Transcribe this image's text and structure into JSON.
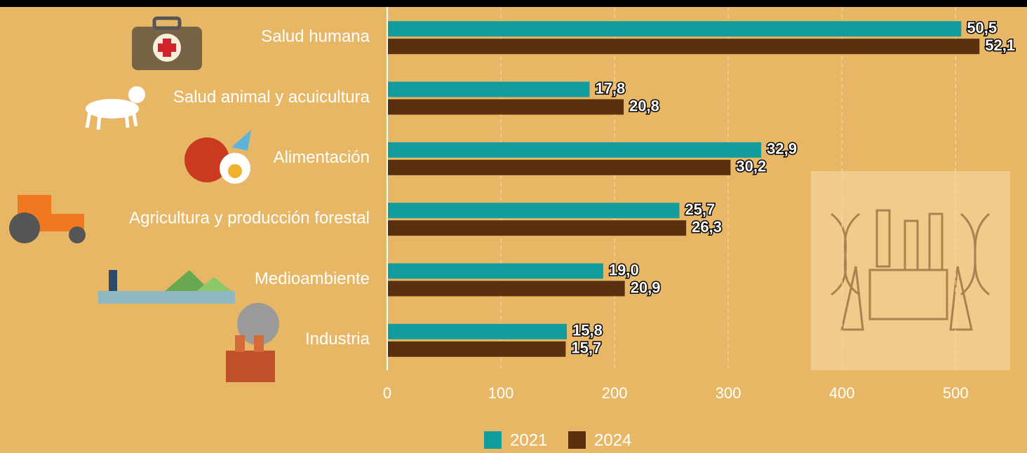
{
  "chart_data": {
    "type": "hbar",
    "categories": [
      "Salud humana",
      "Salud animal y acuicultura",
      "Alimentación",
      "Agricultura y producción forestal",
      "Medioambiente",
      "Industria"
    ],
    "series": [
      {
        "name": "2021",
        "color": "#129c9c",
        "values": [
          505,
          178,
          329,
          257,
          190,
          158
        ],
        "value_labels": [
          "50,5",
          "17,8",
          "32,9",
          "25,7",
          "19,0",
          "15,8"
        ]
      },
      {
        "name": "2024",
        "color": "#5a3010",
        "values": [
          521,
          208,
          302,
          263,
          209,
          157
        ],
        "value_labels": [
          "52,1",
          "20,8",
          "30,2",
          "26,3",
          "20,9",
          "15,7"
        ]
      }
    ],
    "xlim": [
      0,
      548
    ],
    "xticks": [
      0,
      100,
      200,
      300,
      400,
      500
    ],
    "grid": true
  }
}
